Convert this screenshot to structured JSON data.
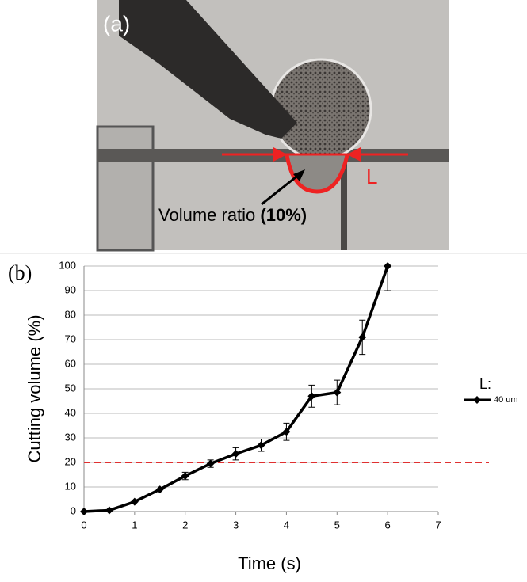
{
  "panel_a": {
    "label": "(a)",
    "annotation": "Volume ratio",
    "annotation_bold": "(10%)",
    "marker": "L"
  },
  "chart_data": {
    "type": "line",
    "panel_label": "(b)",
    "x_label": "Time (s)",
    "y_label": "Cutting volume (%)",
    "x": [
      0,
      0.5,
      1,
      1.5,
      2,
      2.5,
      3,
      3.5,
      4,
      4.5,
      5,
      5.5,
      6
    ],
    "legend_title": "L:",
    "series": [
      {
        "name": "40 um",
        "color": "#000000",
        "values": [
          0,
          0.5,
          4,
          9,
          14.5,
          19.5,
          23.5,
          27,
          32.5,
          47,
          48.5,
          71,
          100
        ],
        "errors": [
          0,
          0,
          0,
          0,
          1.5,
          1.5,
          2.5,
          2.5,
          3.5,
          4.5,
          5,
          7,
          10
        ]
      }
    ],
    "reference_line": {
      "value": 20,
      "color": "#e03030"
    },
    "xlim": [
      0,
      7
    ],
    "xticks": [
      0,
      1,
      2,
      3,
      4,
      5,
      6,
      7
    ],
    "ylim": [
      0,
      100
    ],
    "yticks": [
      0,
      10,
      20,
      30,
      40,
      50,
      60,
      70,
      80,
      90,
      100
    ],
    "grid": true
  }
}
